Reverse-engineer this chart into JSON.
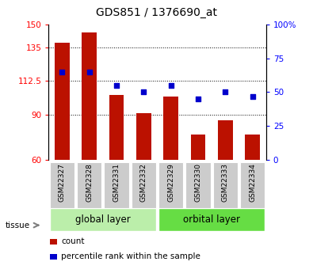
{
  "title": "GDS851 / 1376690_at",
  "samples": [
    "GSM22327",
    "GSM22328",
    "GSM22331",
    "GSM22332",
    "GSM22329",
    "GSM22330",
    "GSM22333",
    "GSM22334"
  ],
  "count_values": [
    138,
    145,
    103,
    91,
    102,
    77,
    86,
    77
  ],
  "percentile_values": [
    65,
    65,
    55,
    50,
    55,
    45,
    50,
    47
  ],
  "bar_color": "#BB1100",
  "dot_color": "#0000CC",
  "ylim_left": [
    60,
    150
  ],
  "ylim_right": [
    0,
    100
  ],
  "yticks_left": [
    60,
    90,
    112.5,
    135,
    150
  ],
  "ytick_labels_left": [
    "60",
    "90",
    "112.5",
    "135",
    "150"
  ],
  "yticks_right": [
    0,
    25,
    50,
    75,
    100
  ],
  "ytick_labels_right": [
    "0",
    "25",
    "50",
    "75",
    "100%"
  ],
  "group1_label": "global layer",
  "group2_label": "orbital layer",
  "group1_color": "#BBEEAA",
  "group2_color": "#66DD44",
  "tissue_label": "tissue",
  "legend_count_label": "count",
  "legend_pct_label": "percentile rank within the sample",
  "tick_bg_color": "#CCCCCC",
  "grid_dotted_color": "black",
  "bar_width": 0.55
}
